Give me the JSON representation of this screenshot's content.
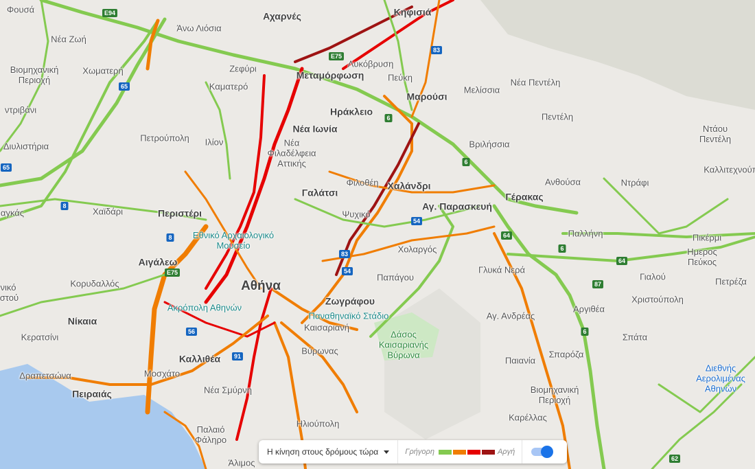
{
  "places": [
    {
      "name": "Φουσά"
    },
    {
      "name": "Αχαρνές",
      "style": "b"
    },
    {
      "name": "Κηφισιά",
      "style": "b"
    },
    {
      "name": "Νέα Ζωή"
    },
    {
      "name": "Άνω Λιόσια"
    },
    {
      "name": "Βιομηχανική\nΠεριοχή"
    },
    {
      "name": "Χωματερή"
    },
    {
      "name": "Ζεφύρι"
    },
    {
      "name": "Λυκόβρυση"
    },
    {
      "name": "Μεταμόρφωση",
      "style": "b"
    },
    {
      "name": "Καματερό"
    },
    {
      "name": "Πεύκη"
    },
    {
      "name": "Μελίσσια"
    },
    {
      "name": "Νέα Πεντέλη"
    },
    {
      "name": "Μαρούσι",
      "style": "b"
    },
    {
      "name": "ντριβάνι"
    },
    {
      "name": "Ηράκλειο",
      "style": "b"
    },
    {
      "name": "Πεντέλη"
    },
    {
      "name": "Νέα Ιωνία",
      "style": "b"
    },
    {
      "name": "Ντάου\nΠεντέλη"
    },
    {
      "name": "Πετρούπολη"
    },
    {
      "name": "Ιλίον"
    },
    {
      "name": "Νέα\nΦιλαδέλφεια\nΑττικής"
    },
    {
      "name": "Βριλήσσια"
    },
    {
      "name": "Διυλιστήρια"
    },
    {
      "name": "Καλλιτεχνούπ"
    },
    {
      "name": "Φιλοθέη"
    },
    {
      "name": "Χαλάνδρι",
      "style": "b"
    },
    {
      "name": "Ανθούσα"
    },
    {
      "name": "Ντράφι"
    },
    {
      "name": "Γαλάτσι",
      "style": "b"
    },
    {
      "name": "Γέρακας",
      "style": "b"
    },
    {
      "name": "Αγ. Παρασκευή",
      "style": "b"
    },
    {
      "name": "αγκάς"
    },
    {
      "name": "Χαϊδάρι"
    },
    {
      "name": "Περιστέρι",
      "style": "b"
    },
    {
      "name": "Ψυχικό"
    },
    {
      "name": "Παλλήνη"
    },
    {
      "name": "Πικέρμι"
    },
    {
      "name": "Εθνικό Αρχαιολογικό\nΜουσείο",
      "style": "poi"
    },
    {
      "name": "Χολαργός"
    },
    {
      "name": "Γλυκά Νερά"
    },
    {
      "name": "Ημερος\nΠεύκος"
    },
    {
      "name": "Αιγάλεω",
      "style": "b"
    },
    {
      "name": "Παπάγου"
    },
    {
      "name": "Γιαλού"
    },
    {
      "name": "Πετρέζα"
    },
    {
      "name": "Κορυδαλλός"
    },
    {
      "name": "Αθήνα",
      "style": "big"
    },
    {
      "name": "νικό\nιστού"
    },
    {
      "name": "Ακρόπολη Αθηνών",
      "style": "poi"
    },
    {
      "name": "Ζωγράφου",
      "style": "b"
    },
    {
      "name": "Χριστούπολη"
    },
    {
      "name": "Αργιθέα"
    },
    {
      "name": "Παναθηναϊκό Στάδιο",
      "style": "poi"
    },
    {
      "name": "Αγ. Ανδρέας"
    },
    {
      "name": "Νίκαια",
      "style": "b"
    },
    {
      "name": "Καισαριανή"
    },
    {
      "name": "Δάσος\nΚαισαριανής\nΒύρωνα",
      "style": "park"
    },
    {
      "name": "Κερατσίνι"
    },
    {
      "name": "Σπάτα"
    },
    {
      "name": "Καλλιθέα",
      "style": "b"
    },
    {
      "name": "Βύρωνας"
    },
    {
      "name": "Σπαρόζα"
    },
    {
      "name": "Παιανία"
    },
    {
      "name": "Διεθνής\nΑερολιμένας\nΑθηνών",
      "style": "air"
    },
    {
      "name": "Δραπετσώνα"
    },
    {
      "name": "Μοσχάτο"
    },
    {
      "name": "Βιομηχανική\nΠεριοχή"
    },
    {
      "name": "Πειραιάς",
      "style": "b"
    },
    {
      "name": "Νέα Σμύρνη"
    },
    {
      "name": "Καρέλλας"
    },
    {
      "name": "Ηλιούπολη"
    },
    {
      "name": "Παλαιό\nΦάληρο"
    },
    {
      "name": "Άλιμος"
    }
  ],
  "road_shields": [
    "E94",
    "E75",
    "83",
    "65",
    "6",
    "6",
    "8",
    "8",
    "54",
    "83",
    "54",
    "64",
    "6",
    "64",
    "87",
    "E75",
    "56",
    "91",
    "6",
    "62",
    "65"
  ],
  "legend": {
    "dropdown_label": "Η κίνηση στους δρόμους τώρα",
    "fast_label": "Γρήγορη",
    "slow_label": "Αργή",
    "colors": [
      "#84ca50",
      "#f07d02",
      "#e60000",
      "#9e1313"
    ],
    "traffic_layer_on": true
  }
}
